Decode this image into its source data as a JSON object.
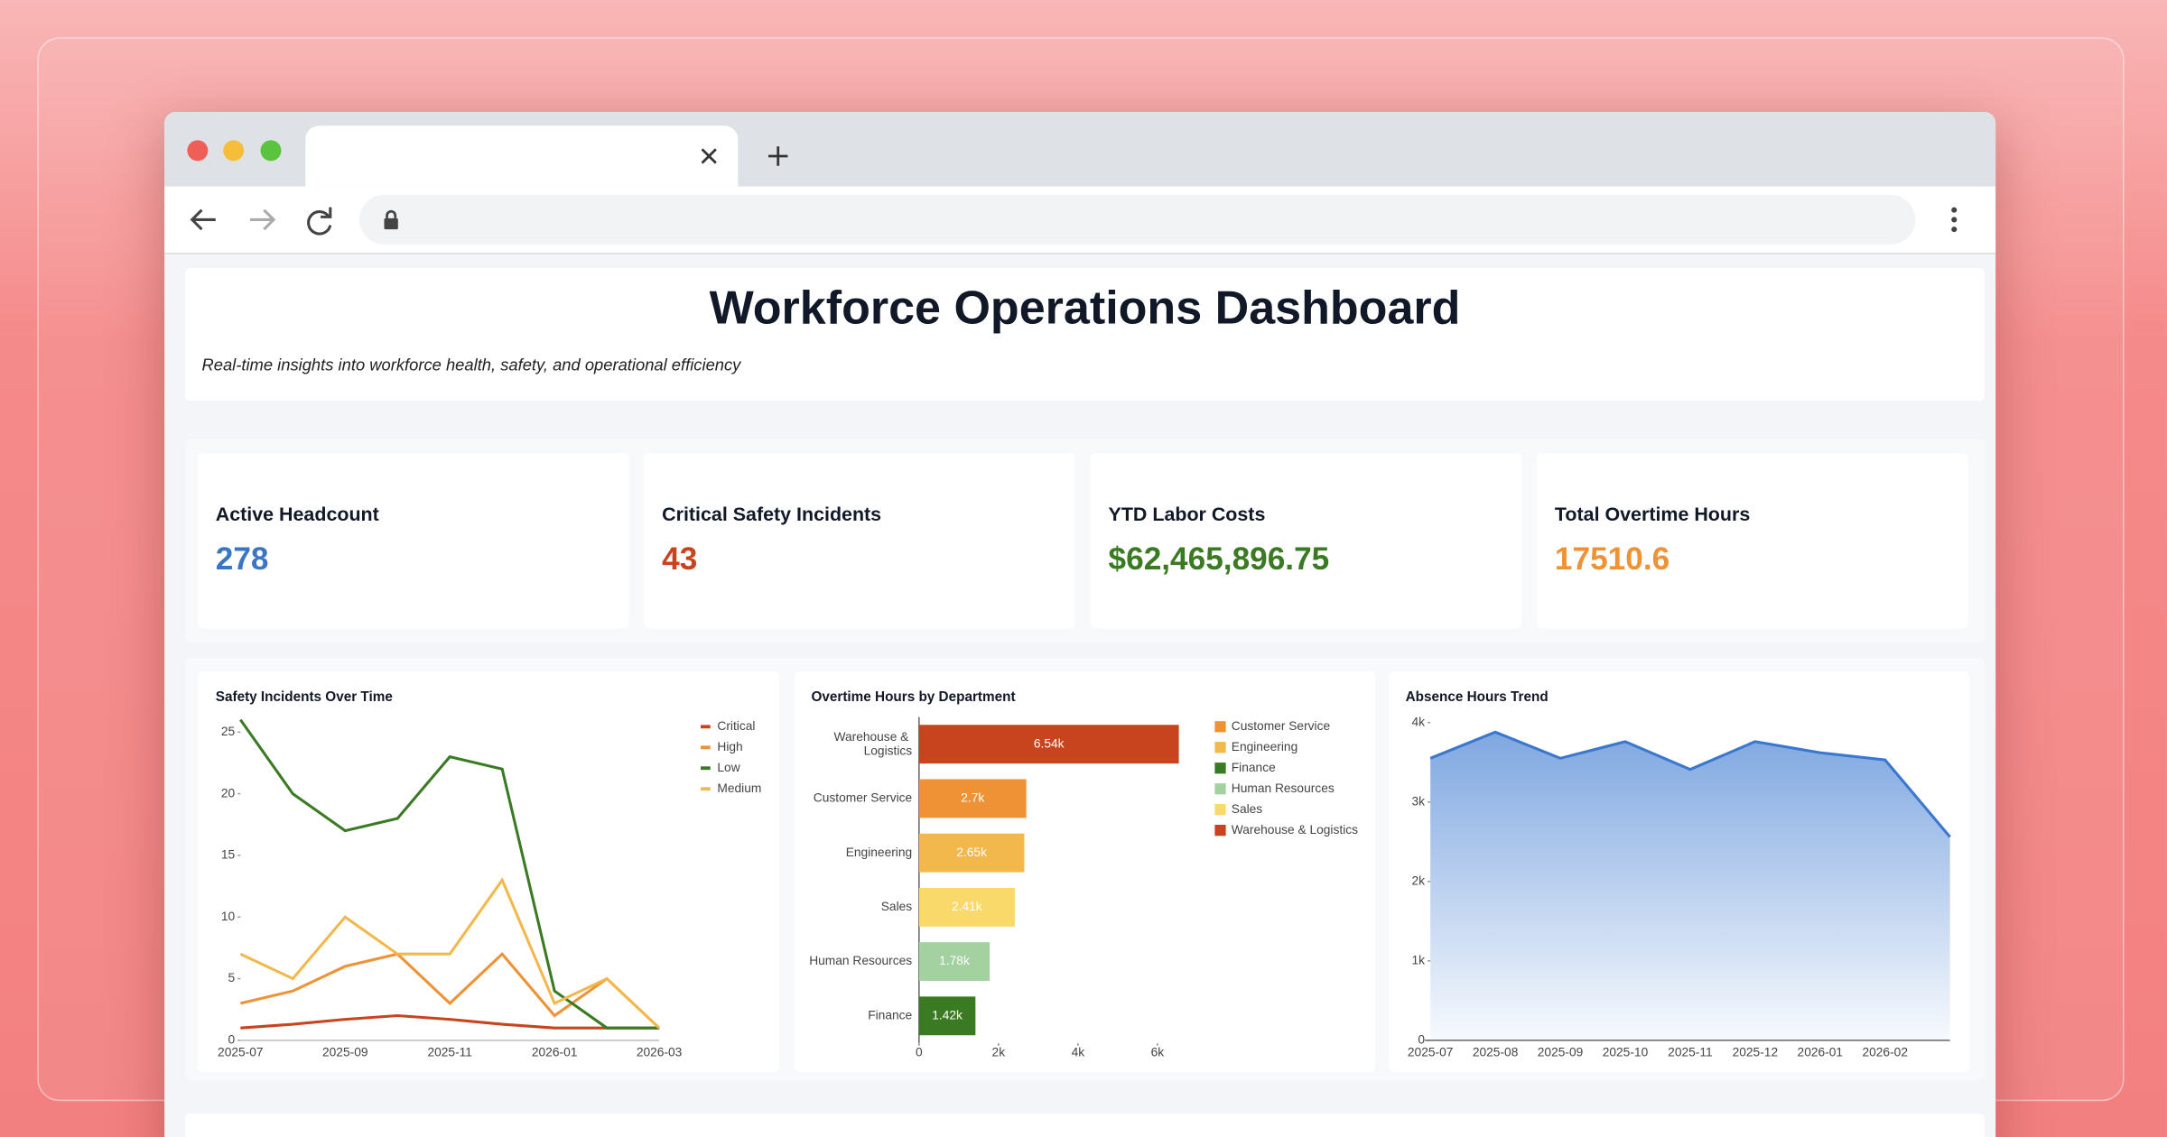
{
  "header": {
    "title": "Workforce Operations Dashboard",
    "subtitle": "Real-time insights into workforce health, safety, and operational efficiency"
  },
  "kpis": [
    {
      "label": "Active Headcount",
      "value": "278",
      "color": "#3b76c4"
    },
    {
      "label": "Critical Safety Incidents",
      "value": "43",
      "color": "#c8441f"
    },
    {
      "label": "YTD Labor Costs",
      "value": "$62,465,896.75",
      "color": "#3a7a23"
    },
    {
      "label": "Total Overtime Hours",
      "value": "17510.6",
      "color": "#ef9236"
    }
  ],
  "chart_data": [
    {
      "type": "line",
      "title": "Safety Incidents Over Time",
      "categories": [
        "2025-07",
        null,
        "2025-09",
        null,
        "2025-11",
        null,
        "2026-01",
        null,
        "2026-03"
      ],
      "series": [
        {
          "name": "Critical",
          "color": "#c8441f",
          "values": [
            1,
            1.3,
            1.7,
            2,
            1.7,
            1.3,
            1,
            1,
            1
          ]
        },
        {
          "name": "High",
          "color": "#ef9236",
          "values": [
            3,
            4,
            6,
            7,
            3,
            7,
            2,
            5,
            1
          ]
        },
        {
          "name": "Low",
          "color": "#3a7a23",
          "values": [
            26,
            20,
            17,
            18,
            23,
            22,
            4,
            1,
            1
          ]
        },
        {
          "name": "Medium",
          "color": "#f2b84b",
          "values": [
            7,
            5,
            10,
            7,
            7,
            13,
            3,
            5,
            1
          ]
        }
      ],
      "ylim": [
        0,
        26
      ],
      "yticks": [
        0,
        5,
        10,
        15,
        20,
        25
      ],
      "legend": "top-right"
    },
    {
      "type": "barh",
      "title": "Overtime Hours by Department",
      "categories": [
        "Warehouse & Logistics",
        "Customer Service",
        "Engineering",
        "Sales",
        "Human Resources",
        "Finance"
      ],
      "values": [
        6540,
        2700,
        2650,
        2410,
        1780,
        1420
      ],
      "value_labels": [
        "6.54k",
        "2.7k",
        "2.65k",
        "2.41k",
        "1.78k",
        "1.42k"
      ],
      "colors": [
        "#c8441f",
        "#ef9236",
        "#f2b84b",
        "#f8d96a",
        "#a3d2a0",
        "#3a7a23"
      ],
      "xlim": [
        0,
        6540
      ],
      "xticks": [
        0,
        {
          "value": 2000,
          "label": "2k"
        },
        {
          "value": 4000,
          "label": "4k"
        },
        {
          "value": 6000,
          "label": "6k"
        }
      ],
      "legend_items": [
        {
          "name": "Customer Service",
          "color": "#ef9236"
        },
        {
          "name": "Engineering",
          "color": "#f2b84b"
        },
        {
          "name": "Finance",
          "color": "#3a7a23"
        },
        {
          "name": "Human Resources",
          "color": "#a3d2a0"
        },
        {
          "name": "Sales",
          "color": "#f8d96a"
        },
        {
          "name": "Warehouse & Logistics",
          "color": "#c8441f"
        }
      ],
      "legend": "top-right"
    },
    {
      "type": "area",
      "title": "Absence Hours Trend",
      "categories": [
        "2025-07",
        "2025-08",
        "2025-09",
        "2025-10",
        "2025-11",
        "2025-12",
        "2026-01",
        "2026-02",
        null
      ],
      "values": [
        3550,
        3880,
        3550,
        3760,
        3410,
        3760,
        3620,
        3530,
        2560
      ],
      "color": "#3a78d0",
      "ylim": [
        0,
        4000
      ],
      "yticks": [
        0,
        {
          "value": 1000,
          "label": "1k"
        },
        {
          "value": 2000,
          "label": "2k"
        },
        {
          "value": 3000,
          "label": "3k"
        },
        {
          "value": 4000,
          "label": "4k"
        }
      ]
    }
  ]
}
